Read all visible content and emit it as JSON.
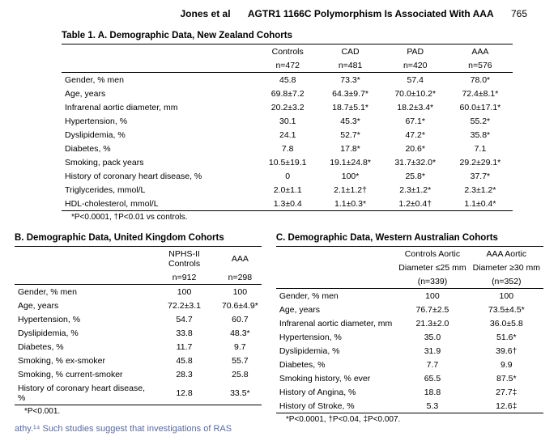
{
  "header": {
    "authors": "Jones et al",
    "title": "AGTR1 1166C Polymorphism Is Associated With AAA",
    "page": "765"
  },
  "tableA": {
    "title": "Table 1.   A. Demographic Data, New Zealand Cohorts",
    "cols": [
      {
        "label": "Controls",
        "n": "n=472"
      },
      {
        "label": "CAD",
        "n": "n=481"
      },
      {
        "label": "PAD",
        "n": "n=420"
      },
      {
        "label": "AAA",
        "n": "n=576"
      }
    ],
    "rows": [
      {
        "label": "Gender, % men",
        "v": [
          "45.8",
          "73.3*",
          "57.4",
          "78.0*"
        ]
      },
      {
        "label": "Age, years",
        "v": [
          "69.8±7.2",
          "64.3±9.7*",
          "70.0±10.2*",
          "72.4±8.1*"
        ]
      },
      {
        "label": "Infrarenal aortic diameter, mm",
        "v": [
          "20.2±3.2",
          "18.7±5.1*",
          "18.2±3.4*",
          "60.0±17.1*"
        ]
      },
      {
        "label": "Hypertension, %",
        "v": [
          "30.1",
          "45.3*",
          "67.1*",
          "55.2*"
        ]
      },
      {
        "label": "Dyslipidemia, %",
        "v": [
          "24.1",
          "52.7*",
          "47.2*",
          "35.8*"
        ]
      },
      {
        "label": "Diabetes, %",
        "v": [
          "7.8",
          "17.8*",
          "20.6*",
          "7.1"
        ]
      },
      {
        "label": "Smoking, pack years",
        "v": [
          "10.5±19.1",
          "19.1±24.8*",
          "31.7±32.0*",
          "29.2±29.1*"
        ]
      },
      {
        "label": "History of coronary heart disease, %",
        "v": [
          "0",
          "100*",
          "25.8*",
          "37.7*"
        ]
      },
      {
        "label": "Triglycerides, mmol/L",
        "v": [
          "2.0±1.1",
          "2.1±1.2†",
          "2.3±1.2*",
          "2.3±1.2*"
        ]
      },
      {
        "label": "HDL-cholesterol, mmol/L",
        "v": [
          "1.3±0.4",
          "1.1±0.3*",
          "1.2±0.4†",
          "1.1±0.4*"
        ]
      }
    ],
    "footnote": "*P<0.0001, †P<0.01 vs controls."
  },
  "tableB": {
    "title": "B. Demographic Data, United Kingdom Cohorts",
    "cols": [
      {
        "label": "NPHS-II Controls",
        "n": "n=912"
      },
      {
        "label": "AAA",
        "n": "n=298"
      }
    ],
    "rows": [
      {
        "label": "Gender, % men",
        "v": [
          "100",
          "100"
        ]
      },
      {
        "label": "Age, years",
        "v": [
          "72.2±3.1",
          "70.6±4.9*"
        ]
      },
      {
        "label": "Hypertension, %",
        "v": [
          "54.7",
          "60.7"
        ]
      },
      {
        "label": "Dyslipidemia, %",
        "v": [
          "33.8",
          "48.3*"
        ]
      },
      {
        "label": "Diabetes, %",
        "v": [
          "11.7",
          "9.7"
        ]
      },
      {
        "label": "Smoking, % ex-smoker",
        "v": [
          "45.8",
          "55.7"
        ]
      },
      {
        "label": "Smoking, % current-smoker",
        "v": [
          "28.3",
          "25.8"
        ]
      },
      {
        "label": "History of coronary heart disease, %",
        "v": [
          "12.8",
          "33.5*"
        ]
      }
    ],
    "footnote": "*P<0.001."
  },
  "tableC": {
    "title": "C. Demographic Data, Western Australian Cohorts",
    "cols": [
      {
        "l1": "Controls Aortic",
        "l2": "Diameter ≤25 mm",
        "n": "(n=339)"
      },
      {
        "l1": "AAA Aortic",
        "l2": "Diameter ≥30 mm",
        "n": "(n=352)"
      }
    ],
    "rows": [
      {
        "label": "Gender, % men",
        "v": [
          "100",
          "100"
        ]
      },
      {
        "label": "Age, years",
        "v": [
          "76.7±2.5",
          "73.5±4.5*"
        ]
      },
      {
        "label": "Infrarenal aortic diameter, mm",
        "v": [
          "21.3±2.0",
          "36.0±5.8"
        ]
      },
      {
        "label": "Hypertension, %",
        "v": [
          "35.0",
          "51.6*"
        ]
      },
      {
        "label": "Dyslipidemia, %",
        "v": [
          "31.9",
          "39.6†"
        ]
      },
      {
        "label": "Diabetes, %",
        "v": [
          "7.7",
          "9.9"
        ]
      },
      {
        "label": "Smoking history, % ever",
        "v": [
          "65.5",
          "87.5*"
        ]
      },
      {
        "label": "History of Angina, %",
        "v": [
          "18.8",
          "27.7‡"
        ]
      },
      {
        "label": "History of Stroke, %",
        "v": [
          "5.3",
          "12.6‡"
        ]
      }
    ],
    "footnote": "*P<0.0001, †P<0.04, ‡P<0.007."
  },
  "stub_text": "athy.¹⁴ Such studies suggest that investigations of RAS"
}
